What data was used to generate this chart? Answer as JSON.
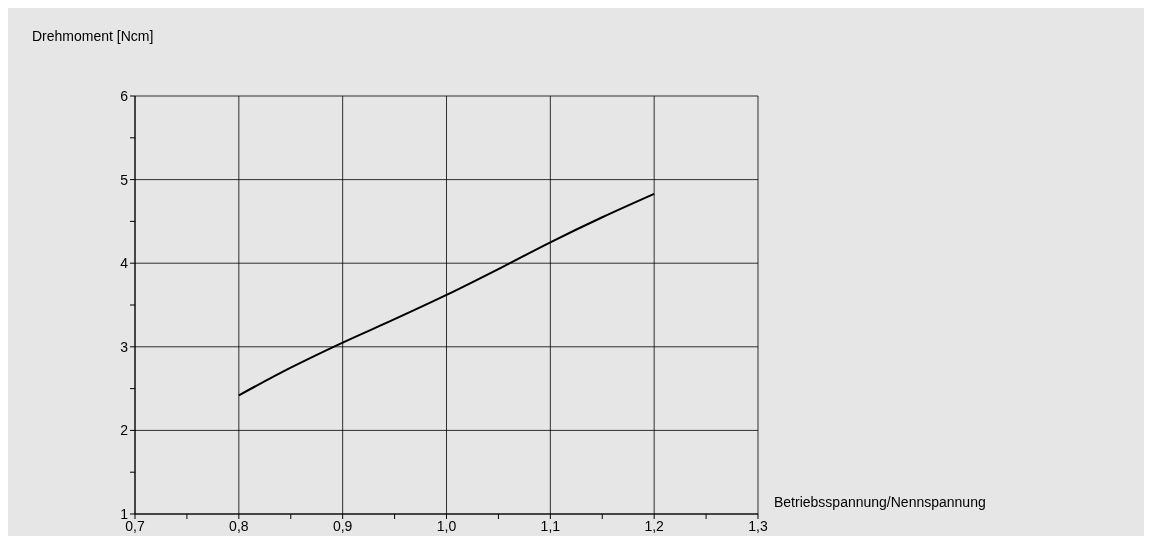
{
  "chart_data": {
    "type": "line",
    "ylabel": "Drehmoment [Ncm]",
    "xlabel": "Betriebsspannung/Nennspannung",
    "x": [
      0.8,
      0.85,
      0.9,
      0.95,
      1.0,
      1.05,
      1.1,
      1.15,
      1.2
    ],
    "series": [
      {
        "color": "#000000",
        "values": [
          2.42,
          2.75,
          3.05,
          3.33,
          3.62,
          3.93,
          4.25,
          4.55,
          4.83
        ]
      }
    ],
    "xlim": [
      0.7,
      1.3
    ],
    "xticks": [
      {
        "value": 0.7,
        "label": "0,7"
      },
      {
        "value": 0.75,
        "label": null
      },
      {
        "value": 0.8,
        "label": "0,8"
      },
      {
        "value": 0.85,
        "label": null
      },
      {
        "value": 0.9,
        "label": "0,9"
      },
      {
        "value": 0.95,
        "label": null
      },
      {
        "value": 1.0,
        "label": "1,0"
      },
      {
        "value": 1.05,
        "label": null
      },
      {
        "value": 1.1,
        "label": "1,1"
      },
      {
        "value": 1.15,
        "label": null
      },
      {
        "value": 1.2,
        "label": "1,2"
      },
      {
        "value": 1.25,
        "label": null
      },
      {
        "value": 1.3,
        "label": "1,3"
      }
    ],
    "ylim": [
      1,
      6
    ],
    "yticks": [
      1,
      {
        "value": 1.5,
        "label": null
      },
      2,
      {
        "value": 2.5,
        "label": null
      },
      3,
      {
        "value": 3.5,
        "label": null
      },
      4,
      {
        "value": 4.5,
        "label": null
      },
      5,
      {
        "value": 5.5,
        "label": null
      },
      6
    ],
    "grid": true,
    "marker": "none",
    "line_style": "solid",
    "legend": false
  }
}
